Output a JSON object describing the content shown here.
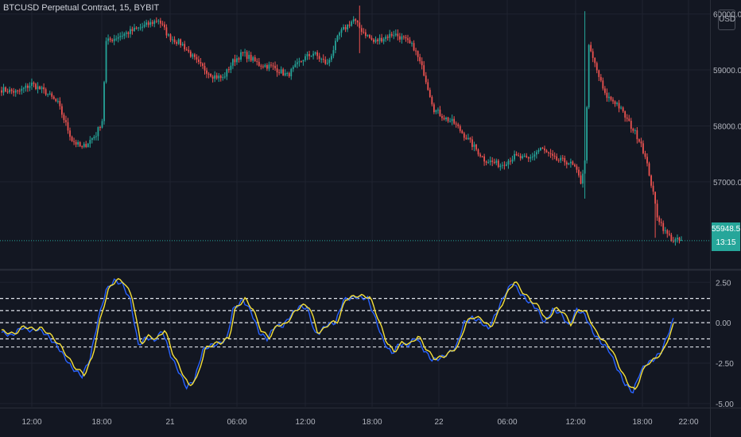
{
  "header": {
    "symbol_title": "BTCUSD Perpetual Contract, 15, BYBIT",
    "currency": "USD"
  },
  "last_price": {
    "value": "55948.5",
    "countdown": "13:15",
    "price": 55948.5
  },
  "colors": {
    "background": "#131722",
    "up": "#26a69a",
    "down": "#ef5350",
    "grid": "#1f2330",
    "axis_text": "#b2b5be",
    "level_line": "#e0e3eb",
    "osc_blue": "#2962ff",
    "osc_yellow": "#f5e03a",
    "price_line": "#26a69a"
  },
  "chart_data": [
    {
      "type": "candlestick",
      "title": "BTCUSD Perpetual Contract, 15, BYBIT",
      "y_ticks": [
        "60000.0",
        "59000.0",
        "58000.0",
        "57000.0"
      ],
      "y_tick_values": [
        60000,
        59000,
        58000,
        57000
      ],
      "ylim": [
        55450,
        60250
      ],
      "x_ticks": [
        "12:00",
        "18:00",
        "21",
        "06:00",
        "12:00",
        "18:00",
        "22",
        "06:00",
        "12:00",
        "18:00",
        "22:00"
      ],
      "grid": true,
      "close_anchors": [
        [
          0,
          58650
        ],
        [
          8,
          58600
        ],
        [
          15,
          58750
        ],
        [
          22,
          58600
        ],
        [
          28,
          58400
        ],
        [
          35,
          57750
        ],
        [
          40,
          57600
        ],
        [
          47,
          57850
        ],
        [
          50,
          58100
        ],
        [
          52,
          59500
        ],
        [
          58,
          59600
        ],
        [
          65,
          59700
        ],
        [
          72,
          59800
        ],
        [
          78,
          59900
        ],
        [
          83,
          59600
        ],
        [
          90,
          59450
        ],
        [
          98,
          59100
        ],
        [
          105,
          58900
        ],
        [
          110,
          58850
        ],
        [
          115,
          59150
        ],
        [
          120,
          59300
        ],
        [
          128,
          59100
        ],
        [
          135,
          59050
        ],
        [
          142,
          58900
        ],
        [
          150,
          59200
        ],
        [
          155,
          59300
        ],
        [
          162,
          59100
        ],
        [
          168,
          59650
        ],
        [
          175,
          59900
        ],
        [
          178,
          59750
        ],
        [
          185,
          59500
        ],
        [
          195,
          59650
        ],
        [
          200,
          59550
        ],
        [
          205,
          59400
        ],
        [
          210,
          58950
        ],
        [
          215,
          58300
        ],
        [
          220,
          58150
        ],
        [
          225,
          58050
        ],
        [
          232,
          57750
        ],
        [
          240,
          57400
        ],
        [
          248,
          57300
        ],
        [
          255,
          57450
        ],
        [
          262,
          57400
        ],
        [
          268,
          57600
        ],
        [
          275,
          57400
        ],
        [
          282,
          57350
        ],
        [
          285,
          57250
        ],
        [
          288,
          57000
        ],
        [
          290,
          57350
        ],
        [
          292,
          59400
        ],
        [
          295,
          59100
        ],
        [
          300,
          58550
        ],
        [
          306,
          58400
        ],
        [
          312,
          58050
        ],
        [
          318,
          57700
        ],
        [
          322,
          57150
        ],
        [
          326,
          56400
        ],
        [
          330,
          56100
        ],
        [
          334,
          55950
        ],
        [
          337,
          55950
        ]
      ],
      "special_wicks": [
        {
          "index": 290,
          "high": 60050,
          "low": 56700
        },
        {
          "index": 178,
          "high": 60150,
          "low": 59300
        },
        {
          "index": 325,
          "high": 56700,
          "low": 56000
        }
      ]
    },
    {
      "type": "line",
      "title": "",
      "y_ticks": [
        "2.50",
        "0.00",
        "-2.50",
        "-5.00"
      ],
      "y_tick_values": [
        2.5,
        0.0,
        -2.5,
        -5.0
      ],
      "ylim": [
        -5.2,
        3.2
      ],
      "levels": [
        1.5,
        0.75,
        0.0,
        -1.0,
        -1.5
      ],
      "series": [
        {
          "color": "#2962ff",
          "anchors": [
            [
              0,
              -0.6
            ],
            [
              5,
              -0.8
            ],
            [
              10,
              -0.3
            ],
            [
              15,
              -0.5
            ],
            [
              18,
              -0.4
            ],
            [
              22,
              -0.7
            ],
            [
              28,
              -1.5
            ],
            [
              35,
              -2.8
            ],
            [
              40,
              -3.3
            ],
            [
              44,
              -2.2
            ],
            [
              48,
              0.2
            ],
            [
              52,
              2.0
            ],
            [
              56,
              2.6
            ],
            [
              60,
              2.4
            ],
            [
              64,
              1.4
            ],
            [
              66,
              0.0
            ],
            [
              68,
              -1.4
            ],
            [
              72,
              -0.9
            ],
            [
              76,
              -1.1
            ],
            [
              80,
              -0.5
            ],
            [
              84,
              -2.0
            ],
            [
              88,
              -3.0
            ],
            [
              92,
              -4.0
            ],
            [
              96,
              -3.5
            ],
            [
              100,
              -1.7
            ],
            [
              104,
              -1.4
            ],
            [
              108,
              -1.3
            ],
            [
              112,
              -1.0
            ],
            [
              115,
              0.8
            ],
            [
              120,
              1.4
            ],
            [
              124,
              0.7
            ],
            [
              128,
              -0.6
            ],
            [
              132,
              -1.0
            ],
            [
              136,
              -0.2
            ],
            [
              140,
              -0.2
            ],
            [
              144,
              0.5
            ],
            [
              148,
              1.0
            ],
            [
              152,
              0.9
            ],
            [
              156,
              -0.7
            ],
            [
              158,
              -0.6
            ],
            [
              162,
              -0.1
            ],
            [
              166,
              0.0
            ],
            [
              170,
              1.4
            ],
            [
              176,
              1.6
            ],
            [
              182,
              1.5
            ],
            [
              186,
              0.2
            ],
            [
              190,
              -1.2
            ],
            [
              194,
              -1.9
            ],
            [
              198,
              -1.3
            ],
            [
              202,
              -1.4
            ],
            [
              206,
              -0.9
            ],
            [
              210,
              -1.7
            ],
            [
              214,
              -2.3
            ],
            [
              218,
              -2.2
            ],
            [
              222,
              -1.9
            ],
            [
              226,
              -1.5
            ],
            [
              230,
              0.0
            ],
            [
              234,
              0.3
            ],
            [
              238,
              0.1
            ],
            [
              242,
              -0.4
            ],
            [
              246,
              0.6
            ],
            [
              250,
              1.7
            ],
            [
              254,
              2.5
            ],
            [
              258,
              1.8
            ],
            [
              262,
              1.3
            ],
            [
              266,
              0.9
            ],
            [
              270,
              0.0
            ],
            [
              274,
              0.8
            ],
            [
              278,
              0.6
            ],
            [
              282,
              -0.2
            ],
            [
              286,
              0.8
            ],
            [
              290,
              0.5
            ],
            [
              294,
              -0.6
            ],
            [
              298,
              -1.2
            ],
            [
              302,
              -1.7
            ],
            [
              306,
              -2.8
            ],
            [
              310,
              -3.8
            ],
            [
              314,
              -4.3
            ],
            [
              317,
              -3.2
            ],
            [
              320,
              -2.6
            ],
            [
              324,
              -2.3
            ],
            [
              328,
              -1.8
            ],
            [
              332,
              -0.5
            ],
            [
              334,
              0.2
            ]
          ]
        },
        {
          "color": "#f5e03a",
          "lag": 1.2,
          "offset": 0.08
        }
      ]
    }
  ]
}
